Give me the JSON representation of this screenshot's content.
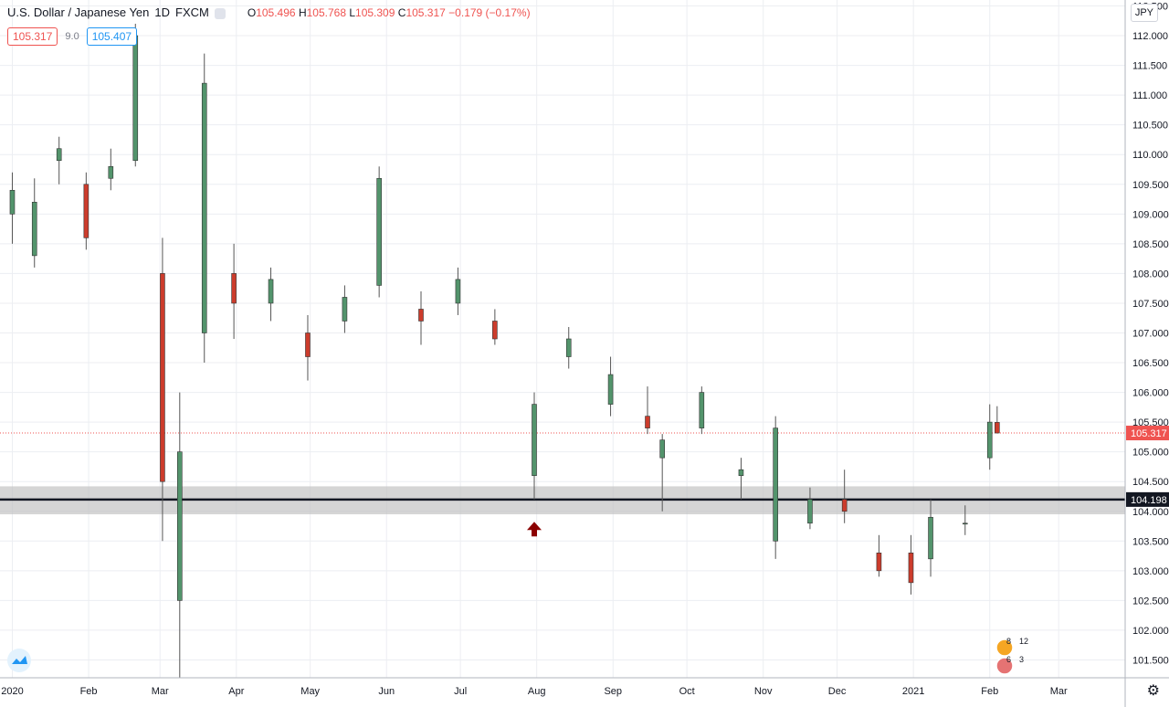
{
  "header": {
    "symbol": "U.S. Dollar / Japanese Yen",
    "interval": "1D",
    "source": "FXCM",
    "ohlc": {
      "open_label": "O",
      "open": "105.496",
      "high_label": "H",
      "high": "105.768",
      "low_label": "L",
      "low": "105.309",
      "close_label": "C",
      "close": "105.317",
      "change": "−0.179 (−0.17%)"
    }
  },
  "trade": {
    "sell": "105.317",
    "spread": "9.0",
    "buy": "105.407"
  },
  "currency_button": "JPY",
  "events": {
    "top_left": "8",
    "top_right": "12",
    "bottom_left": "6",
    "bottom_right": "3"
  },
  "colors": {
    "up": "#53946c",
    "down": "#cc3c2c",
    "wick": "#555555",
    "grid": "#eceef2",
    "zone": "#bfbfbf",
    "level": "#131722",
    "last": "#ef5350",
    "arrow": "#8b0000"
  },
  "icons": [
    "logo-icon",
    "chevron-up-arrow-icon",
    "gear-icon",
    "flag-icon"
  ],
  "chart_data": {
    "type": "candlestick",
    "title": "U.S. Dollar / Japanese Yen",
    "ylim": [
      101.2,
      112.6
    ],
    "y_ticks": [
      "112.500",
      "112.000",
      "111.500",
      "111.000",
      "110.500",
      "110.000",
      "109.500",
      "109.000",
      "108.500",
      "108.000",
      "107.500",
      "107.000",
      "106.500",
      "106.000",
      "105.500",
      "105.000",
      "104.500",
      "104.000",
      "103.500",
      "103.000",
      "102.500",
      "102.000",
      "101.500"
    ],
    "x_ticks": [
      "2020",
      "Feb",
      "Mar",
      "Apr",
      "May",
      "Jun",
      "Jul",
      "Aug",
      "Sep",
      "Oct",
      "Nov",
      "Dec",
      "2021",
      "Feb",
      "Mar"
    ],
    "x_tick_dates": [
      "2020-01-01",
      "2020-02-01",
      "2020-03-01",
      "2020-04-01",
      "2020-05-01",
      "2020-06-01",
      "2020-07-01",
      "2020-08-01",
      "2020-09-01",
      "2020-10-01",
      "2020-11-01",
      "2020-12-01",
      "2021-01-01",
      "2021-02-01",
      "2021-03-01"
    ],
    "x_range": [
      "2019-12-27",
      "2021-03-28"
    ],
    "support_zone": [
      103.95,
      104.42
    ],
    "support_level": {
      "label": "104.198",
      "value": 104.198
    },
    "last_price": {
      "label": "105.317",
      "value": 105.317
    },
    "arrow_marker": {
      "date": "2020-07-31",
      "value": 103.7
    },
    "candles": [
      {
        "date": "2020-01-01",
        "o": 109.0,
        "h": 109.7,
        "l": 108.5,
        "c": 109.4
      },
      {
        "date": "2020-01-10",
        "o": 108.3,
        "h": 109.6,
        "l": 108.1,
        "c": 109.2
      },
      {
        "date": "2020-01-20",
        "o": 109.9,
        "h": 110.3,
        "l": 109.5,
        "c": 110.1
      },
      {
        "date": "2020-01-31",
        "o": 109.5,
        "h": 109.7,
        "l": 108.4,
        "c": 108.6
      },
      {
        "date": "2020-02-10",
        "o": 109.6,
        "h": 110.1,
        "l": 109.4,
        "c": 109.8
      },
      {
        "date": "2020-02-20",
        "o": 109.9,
        "h": 112.2,
        "l": 109.8,
        "c": 112.0
      },
      {
        "date": "2020-03-02",
        "o": 108.0,
        "h": 108.6,
        "l": 103.5,
        "c": 104.5
      },
      {
        "date": "2020-03-09",
        "o": 102.5,
        "h": 106.0,
        "l": 101.2,
        "c": 105.0
      },
      {
        "date": "2020-03-19",
        "o": 107.0,
        "h": 111.7,
        "l": 106.5,
        "c": 111.2
      },
      {
        "date": "2020-03-31",
        "o": 108.0,
        "h": 108.5,
        "l": 106.9,
        "c": 107.5
      },
      {
        "date": "2020-04-15",
        "o": 107.5,
        "h": 108.1,
        "l": 107.2,
        "c": 107.9
      },
      {
        "date": "2020-04-30",
        "o": 107.0,
        "h": 107.3,
        "l": 106.2,
        "c": 106.6
      },
      {
        "date": "2020-05-15",
        "o": 107.2,
        "h": 107.8,
        "l": 107.0,
        "c": 107.6
      },
      {
        "date": "2020-05-29",
        "o": 107.8,
        "h": 109.8,
        "l": 107.6,
        "c": 109.6
      },
      {
        "date": "2020-06-15",
        "o": 107.4,
        "h": 107.7,
        "l": 106.8,
        "c": 107.2
      },
      {
        "date": "2020-06-30",
        "o": 107.5,
        "h": 108.1,
        "l": 107.3,
        "c": 107.9
      },
      {
        "date": "2020-07-15",
        "o": 107.2,
        "h": 107.4,
        "l": 106.8,
        "c": 106.9
      },
      {
        "date": "2020-07-31",
        "o": 104.6,
        "h": 106.0,
        "l": 104.2,
        "c": 105.8
      },
      {
        "date": "2020-08-14",
        "o": 106.6,
        "h": 107.1,
        "l": 106.4,
        "c": 106.9
      },
      {
        "date": "2020-08-31",
        "o": 105.8,
        "h": 106.6,
        "l": 105.6,
        "c": 106.3
      },
      {
        "date": "2020-09-15",
        "o": 105.6,
        "h": 106.1,
        "l": 105.3,
        "c": 105.4
      },
      {
        "date": "2020-09-21",
        "o": 104.9,
        "h": 105.3,
        "l": 104.0,
        "c": 105.2
      },
      {
        "date": "2020-10-07",
        "o": 105.4,
        "h": 106.1,
        "l": 105.3,
        "c": 106.0
      },
      {
        "date": "2020-10-23",
        "o": 104.6,
        "h": 104.9,
        "l": 104.2,
        "c": 104.7
      },
      {
        "date": "2020-11-06",
        "o": 103.5,
        "h": 105.6,
        "l": 103.2,
        "c": 105.4
      },
      {
        "date": "2020-11-20",
        "o": 103.8,
        "h": 104.4,
        "l": 103.7,
        "c": 104.2
      },
      {
        "date": "2020-12-04",
        "o": 104.2,
        "h": 104.7,
        "l": 103.8,
        "c": 104.0
      },
      {
        "date": "2020-12-18",
        "o": 103.3,
        "h": 103.6,
        "l": 102.9,
        "c": 103.0
      },
      {
        "date": "2020-12-31",
        "o": 103.3,
        "h": 103.6,
        "l": 102.6,
        "c": 102.8
      },
      {
        "date": "2021-01-08",
        "o": 103.2,
        "h": 104.2,
        "l": 102.9,
        "c": 103.9
      },
      {
        "date": "2021-01-22",
        "o": 103.8,
        "h": 104.1,
        "l": 103.6,
        "c": 103.8
      },
      {
        "date": "2021-02-01",
        "o": 104.9,
        "h": 105.8,
        "l": 104.7,
        "c": 105.5
      },
      {
        "date": "2021-02-04",
        "o": 105.496,
        "h": 105.768,
        "l": 105.309,
        "c": 105.317
      }
    ]
  }
}
